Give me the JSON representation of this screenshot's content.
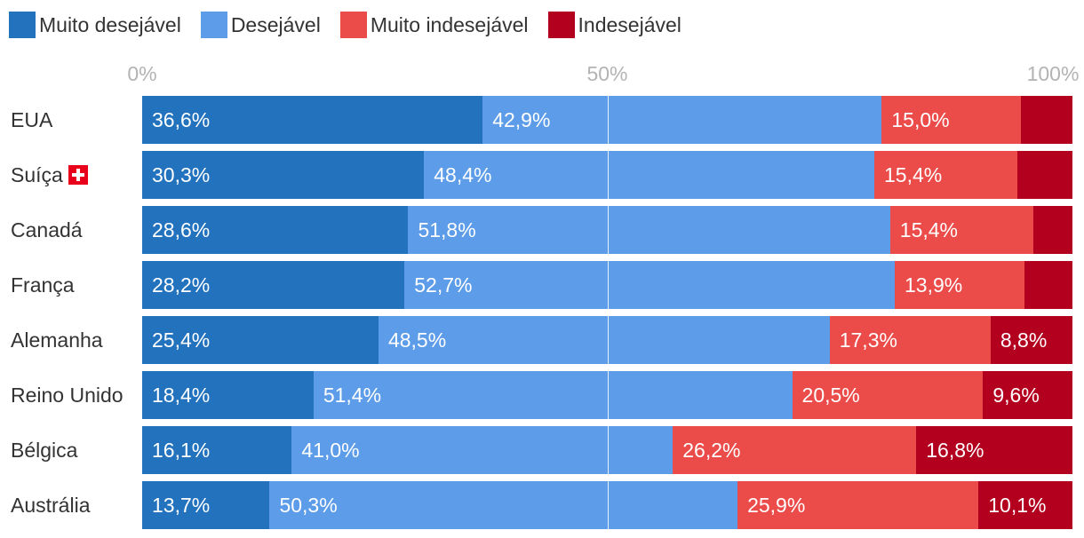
{
  "chart_data": {
    "type": "bar",
    "orientation": "horizontal",
    "stacked": true,
    "categories": [
      "EUA",
      "Suíça",
      "Canadá",
      "França",
      "Alemanha",
      "Reino Unido",
      "Bélgica",
      "Austrália"
    ],
    "series": [
      {
        "name": "Muito desejável",
        "color": "#2272bd",
        "values": [
          36.6,
          30.3,
          28.6,
          28.2,
          25.4,
          18.4,
          16.1,
          13.7
        ],
        "labels": [
          "36,6%",
          "30,3%",
          "28,6%",
          "28,2%",
          "25,4%",
          "18,4%",
          "16,1%",
          "13,7%"
        ]
      },
      {
        "name": "Desejável",
        "color": "#5c9ce8",
        "values": [
          42.9,
          48.4,
          51.8,
          52.7,
          48.5,
          51.4,
          41.0,
          50.3
        ],
        "labels": [
          "42,9%",
          "48,4%",
          "51,8%",
          "52,7%",
          "48,5%",
          "51,4%",
          "41,0%",
          "50,3%"
        ]
      },
      {
        "name": "Muito indesejável",
        "color": "#eb4c4a",
        "values": [
          15.0,
          15.4,
          15.4,
          13.9,
          17.3,
          20.5,
          26.2,
          25.9
        ],
        "labels": [
          "15,0%",
          "15,4%",
          "15,4%",
          "13,9%",
          "17,3%",
          "20,5%",
          "26,2%",
          "25,9%"
        ]
      },
      {
        "name": "Indesejável",
        "color": "#b3001e",
        "values": [
          5.5,
          5.9,
          4.2,
          5.2,
          8.8,
          9.6,
          16.8,
          10.1
        ],
        "labels": [
          "",
          "",
          "",
          "",
          "8,8%",
          "9,6%",
          "16,8%",
          "10,1%"
        ]
      }
    ],
    "xlim": [
      0,
      100
    ],
    "xticks": [
      "0%",
      "50%",
      "100%"
    ],
    "grid": true,
    "legend": "top-left",
    "flag_color": "#e8001b",
    "flag_country": "Suíça"
  }
}
